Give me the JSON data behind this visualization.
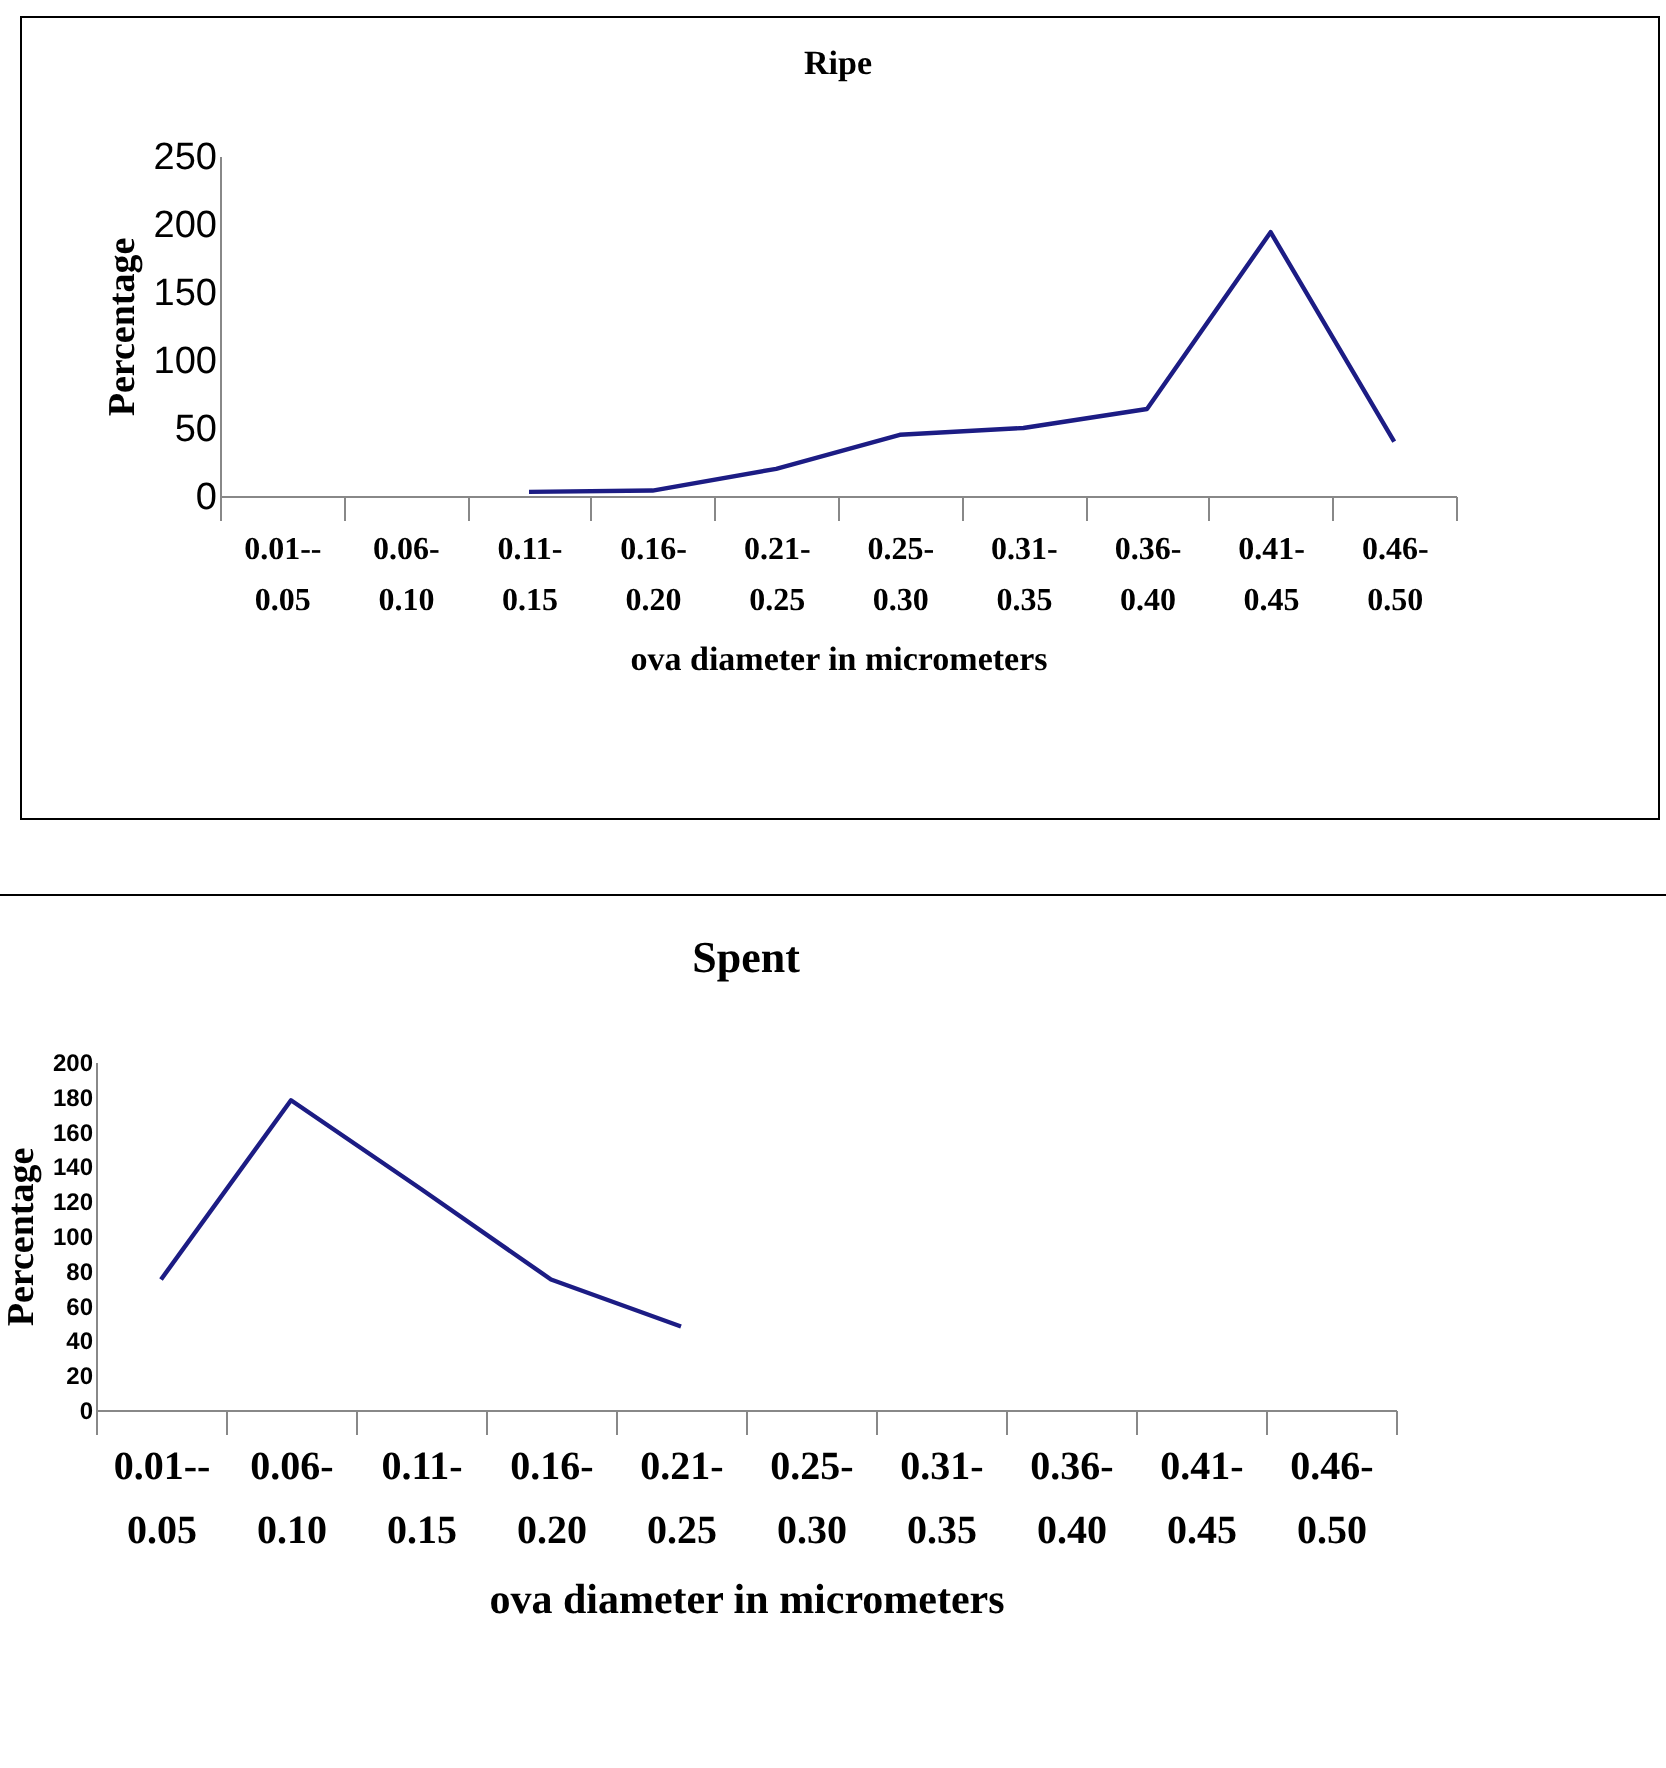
{
  "chart_data": [
    {
      "type": "line",
      "title": "Ripe",
      "xlabel": "ova diameter in micrometers",
      "ylabel": "Percentage",
      "categories": [
        "0.01-- 0.05",
        "0.06- 0.10",
        "0.11- 0.15",
        "0.16- 0.20",
        "0.21- 0.25",
        "0.25- 0.30",
        "0.31- 0.35",
        "0.36- 0.40",
        "0.41- 0.45",
        "0.46- 0.50"
      ],
      "series": [
        {
          "color": "#1c1c84",
          "values": [
            null,
            null,
            3,
            4,
            20,
            45,
            50,
            64,
            194,
            40
          ]
        }
      ],
      "ylim": [
        0,
        250
      ],
      "yticks": [
        0,
        50,
        100,
        150,
        200,
        250
      ]
    },
    {
      "type": "line",
      "title": "Spent",
      "xlabel": "ova diameter in micrometers",
      "ylabel": "Percentage",
      "categories": [
        "0.01-- 0.05",
        "0.06- 0.10",
        "0.11- 0.15",
        "0.16- 0.20",
        "0.21- 0.25",
        "0.25- 0.30",
        "0.31- 0.35",
        "0.36- 0.40",
        "0.41- 0.45",
        "0.46- 0.50"
      ],
      "series": [
        {
          "color": "#1c1c84",
          "values": [
            75,
            178,
            127,
            75,
            48,
            null,
            null,
            null,
            null,
            null
          ]
        }
      ],
      "ylim": [
        0,
        200
      ],
      "yticks": [
        0,
        20,
        40,
        60,
        80,
        100,
        120,
        140,
        160,
        180,
        200
      ]
    }
  ]
}
